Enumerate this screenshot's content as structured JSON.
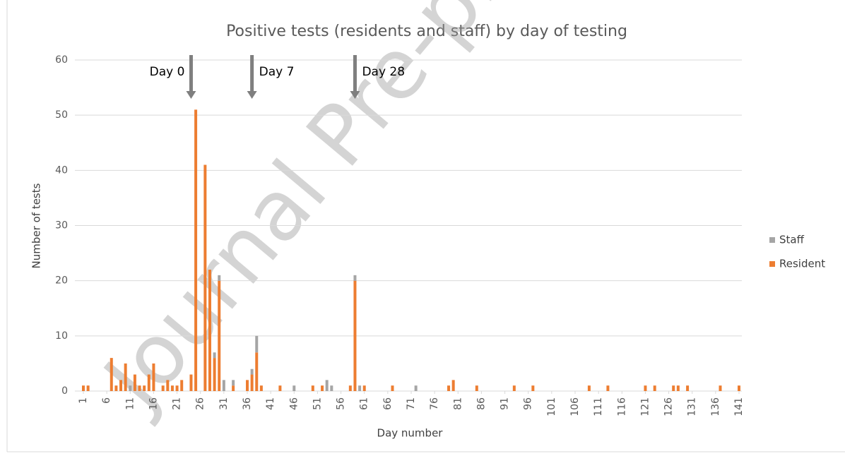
{
  "chart_data": {
    "type": "stacked_bar",
    "title": "Positive tests (residents and staff) by day of testing",
    "watermark": "Journal Pre-proof",
    "xlabel": "Day number",
    "ylabel": "Number of tests",
    "x": [
      1,
      2,
      3,
      4,
      5,
      6,
      7,
      8,
      9,
      10,
      11,
      12,
      13,
      14,
      15,
      16,
      17,
      18,
      19,
      20,
      21,
      22,
      23,
      24,
      25,
      26,
      27,
      28,
      29,
      30,
      31,
      32,
      33,
      34,
      35,
      36,
      37,
      38,
      39,
      40,
      41,
      42,
      43,
      44,
      45,
      46,
      47,
      48,
      49,
      50,
      51,
      52,
      53,
      54,
      55,
      56,
      57,
      58,
      59,
      60,
      61,
      62,
      63,
      64,
      65,
      66,
      67,
      68,
      69,
      70,
      71,
      72,
      73,
      74,
      75,
      76,
      77,
      78,
      79,
      80,
      81,
      82,
      83,
      84,
      85,
      86,
      87,
      88,
      89,
      90,
      91,
      92,
      93,
      94,
      95,
      96,
      97,
      98,
      99,
      100,
      101,
      102,
      103,
      104,
      105,
      106,
      107,
      108,
      109,
      110,
      111,
      112,
      113,
      114,
      115,
      116,
      117,
      118,
      119,
      120,
      121,
      122,
      123,
      124,
      125,
      126,
      127,
      128,
      129,
      130,
      131,
      132,
      133,
      134,
      135,
      136,
      137,
      138,
      139,
      140,
      141
    ],
    "series": [
      {
        "name": "Resident",
        "color": "#ed7d31",
        "values": [
          1,
          1,
          0,
          0,
          0,
          0,
          6,
          1,
          2,
          5,
          0,
          3,
          1,
          1,
          3,
          5,
          0,
          1,
          2,
          1,
          1,
          2,
          0,
          3,
          51,
          0,
          41,
          22,
          6,
          20,
          0,
          0,
          1,
          0,
          0,
          2,
          3,
          7,
          1,
          0,
          0,
          0,
          1,
          0,
          0,
          0,
          0,
          0,
          0,
          1,
          0,
          1,
          0,
          0,
          0,
          0,
          0,
          1,
          20,
          0,
          1,
          0,
          0,
          0,
          0,
          0,
          1,
          0,
          0,
          0,
          0,
          0,
          0,
          0,
          0,
          0,
          0,
          0,
          1,
          2,
          0,
          0,
          0,
          0,
          1,
          0,
          0,
          0,
          0,
          0,
          0,
          0,
          1,
          0,
          0,
          0,
          1,
          0,
          0,
          0,
          0,
          0,
          0,
          0,
          0,
          0,
          0,
          0,
          1,
          0,
          0,
          0,
          1,
          0,
          0,
          0,
          0,
          0,
          0,
          0,
          1,
          0,
          1,
          0,
          0,
          0,
          1,
          1,
          0,
          1,
          0,
          0,
          0,
          0,
          0,
          0,
          1,
          0,
          0,
          0,
          1
        ]
      },
      {
        "name": "Staff",
        "color": "#a5a5a5",
        "values": [
          0,
          0,
          0,
          0,
          0,
          0,
          0,
          0,
          0,
          0,
          1,
          0,
          0,
          0,
          0,
          0,
          0,
          0,
          0,
          0,
          0,
          0,
          0,
          0,
          0,
          0,
          0,
          0,
          1,
          1,
          2,
          0,
          1,
          0,
          0,
          0,
          1,
          3,
          0,
          0,
          0,
          0,
          0,
          0,
          0,
          1,
          0,
          0,
          0,
          0,
          0,
          0,
          2,
          1,
          0,
          0,
          0,
          0,
          1,
          1,
          0,
          0,
          0,
          0,
          0,
          0,
          0,
          0,
          0,
          0,
          0,
          1,
          0,
          0,
          0,
          0,
          0,
          0,
          0,
          0,
          0,
          0,
          0,
          0,
          0,
          0,
          0,
          0,
          0,
          0,
          0,
          0,
          0,
          0,
          0,
          0,
          0,
          0,
          0,
          0,
          0,
          0,
          0,
          0,
          0,
          0,
          0,
          0,
          0,
          0,
          0,
          0,
          0,
          0,
          0,
          0,
          0,
          0,
          0,
          0,
          0,
          0,
          0,
          0,
          0,
          0,
          0,
          0,
          0,
          0,
          0,
          0,
          0,
          0,
          0,
          0,
          0,
          0,
          0,
          0,
          0
        ]
      }
    ],
    "xlim": [
      1,
      141
    ],
    "xticks": [
      1,
      6,
      11,
      16,
      21,
      26,
      31,
      36,
      41,
      46,
      51,
      56,
      61,
      66,
      71,
      76,
      81,
      86,
      91,
      96,
      101,
      106,
      111,
      116,
      121,
      126,
      131,
      136,
      141
    ],
    "ylim": [
      0,
      60
    ],
    "yticks": [
      0,
      10,
      20,
      30,
      40,
      50,
      60
    ],
    "grid": true,
    "legend": "right",
    "annotations": [
      {
        "text": "Day 0",
        "x": 24
      },
      {
        "text": "Day 7",
        "x": 37
      },
      {
        "text": "Day 28",
        "x": 59
      }
    ]
  }
}
